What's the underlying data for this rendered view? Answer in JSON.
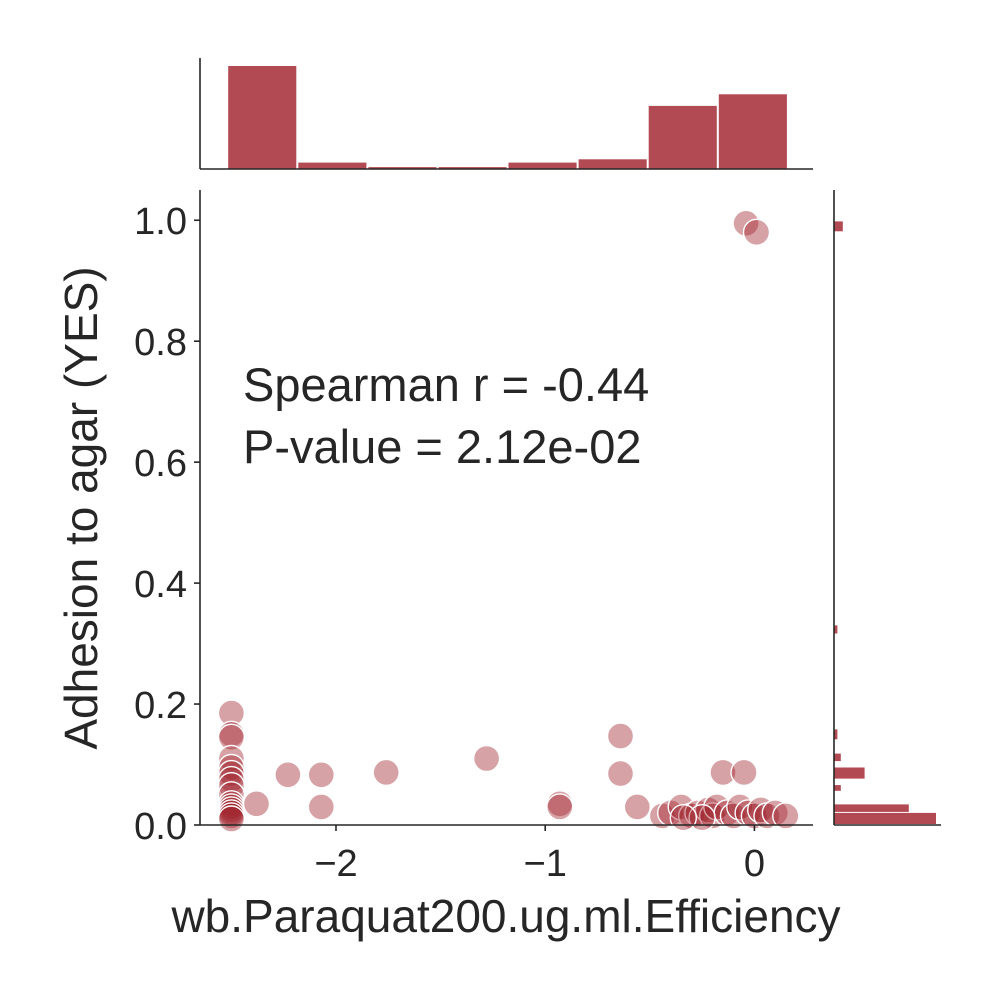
{
  "chart_data": {
    "type": "scatter",
    "xlabel": "wb.Paraquat200.ug.ml.Efficiency",
    "ylabel": "Adhesion to agar (YES)",
    "xlim": [
      -2.65,
      0.28
    ],
    "ylim": [
      0,
      1.05
    ],
    "xticks": [
      {
        "value": -2,
        "label": "−2"
      },
      {
        "value": -1,
        "label": "−1"
      },
      {
        "value": 0,
        "label": "0"
      }
    ],
    "yticks": [
      {
        "value": 0,
        "label": "0.0"
      },
      {
        "value": 0.2,
        "label": "0.2"
      },
      {
        "value": 0.4,
        "label": "0.4"
      },
      {
        "value": 0.6,
        "label": "0.6"
      },
      {
        "value": 0.8,
        "label": "0.8"
      },
      {
        "value": 1.0,
        "label": "1.0"
      }
    ],
    "grid": false,
    "annotation": [
      "Spearman r = -0.44",
      "P-value = 2.12e-02"
    ],
    "color": "#a0222c",
    "marker_color": "#a0222c",
    "points": [
      {
        "x": -2.5,
        "y": 0.185
      },
      {
        "x": -2.5,
        "y": 0.15
      },
      {
        "x": -2.5,
        "y": 0.145
      },
      {
        "x": -2.5,
        "y": 0.11
      },
      {
        "x": -2.5,
        "y": 0.095
      },
      {
        "x": -2.5,
        "y": 0.085
      },
      {
        "x": -2.5,
        "y": 0.075
      },
      {
        "x": -2.5,
        "y": 0.065
      },
      {
        "x": -2.5,
        "y": 0.05
      },
      {
        "x": -2.5,
        "y": 0.035
      },
      {
        "x": -2.5,
        "y": 0.03
      },
      {
        "x": -2.5,
        "y": 0.025
      },
      {
        "x": -2.5,
        "y": 0.02
      },
      {
        "x": -2.5,
        "y": 0.015
      },
      {
        "x": -2.5,
        "y": 0.01
      },
      {
        "x": -2.38,
        "y": 0.035
      },
      {
        "x": -2.23,
        "y": 0.083
      },
      {
        "x": -2.07,
        "y": 0.083
      },
      {
        "x": -2.07,
        "y": 0.03
      },
      {
        "x": -1.76,
        "y": 0.087
      },
      {
        "x": -1.28,
        "y": 0.11
      },
      {
        "x": -0.93,
        "y": 0.035
      },
      {
        "x": -0.93,
        "y": 0.03
      },
      {
        "x": -0.64,
        "y": 0.147
      },
      {
        "x": -0.64,
        "y": 0.085
      },
      {
        "x": -0.56,
        "y": 0.03
      },
      {
        "x": -0.44,
        "y": 0.015
      },
      {
        "x": -0.4,
        "y": 0.02
      },
      {
        "x": -0.35,
        "y": 0.03
      },
      {
        "x": -0.3,
        "y": 0.015
      },
      {
        "x": -0.27,
        "y": 0.02
      },
      {
        "x": -0.22,
        "y": 0.025
      },
      {
        "x": -0.2,
        "y": 0.015
      },
      {
        "x": -0.18,
        "y": 0.03
      },
      {
        "x": -0.15,
        "y": 0.087
      },
      {
        "x": -0.13,
        "y": 0.02
      },
      {
        "x": -0.1,
        "y": 0.015
      },
      {
        "x": -0.07,
        "y": 0.03
      },
      {
        "x": -0.05,
        "y": 0.087
      },
      {
        "x": -0.03,
        "y": 0.02
      },
      {
        "x": 0.0,
        "y": 0.015
      },
      {
        "x": 0.03,
        "y": 0.025
      },
      {
        "x": 0.06,
        "y": 0.015
      },
      {
        "x": 0.1,
        "y": 0.02
      },
      {
        "x": 0.15,
        "y": 0.015
      },
      {
        "x": -0.25,
        "y": 0.012
      },
      {
        "x": -0.34,
        "y": 0.012
      },
      {
        "x": -0.04,
        "y": 0.995
      },
      {
        "x": 0.01,
        "y": 0.98
      }
    ],
    "x_histogram": {
      "counts": [
        16,
        1,
        0.3,
        0.3,
        1,
        1.5,
        9.8,
        11.6
      ],
      "bin_edges": [
        -2.52,
        -2.185,
        -1.85,
        -1.515,
        -1.18,
        -0.845,
        -0.51,
        -0.175,
        0.16
      ]
    },
    "y_histogram": {
      "bins": [
        {
          "y0": 0.0,
          "y1": 0.02,
          "count": 15
        },
        {
          "y0": 0.02,
          "y1": 0.034,
          "count": 11
        },
        {
          "y0": 0.055,
          "y1": 0.066,
          "count": 1
        },
        {
          "y0": 0.075,
          "y1": 0.095,
          "count": 4.5
        },
        {
          "y0": 0.104,
          "y1": 0.118,
          "count": 1
        },
        {
          "y0": 0.14,
          "y1": 0.158,
          "count": 0.5
        },
        {
          "y0": 0.315,
          "y1": 0.33,
          "count": 0.5
        },
        {
          "y0": 0.98,
          "y1": 0.998,
          "count": 1.3
        }
      ]
    }
  }
}
